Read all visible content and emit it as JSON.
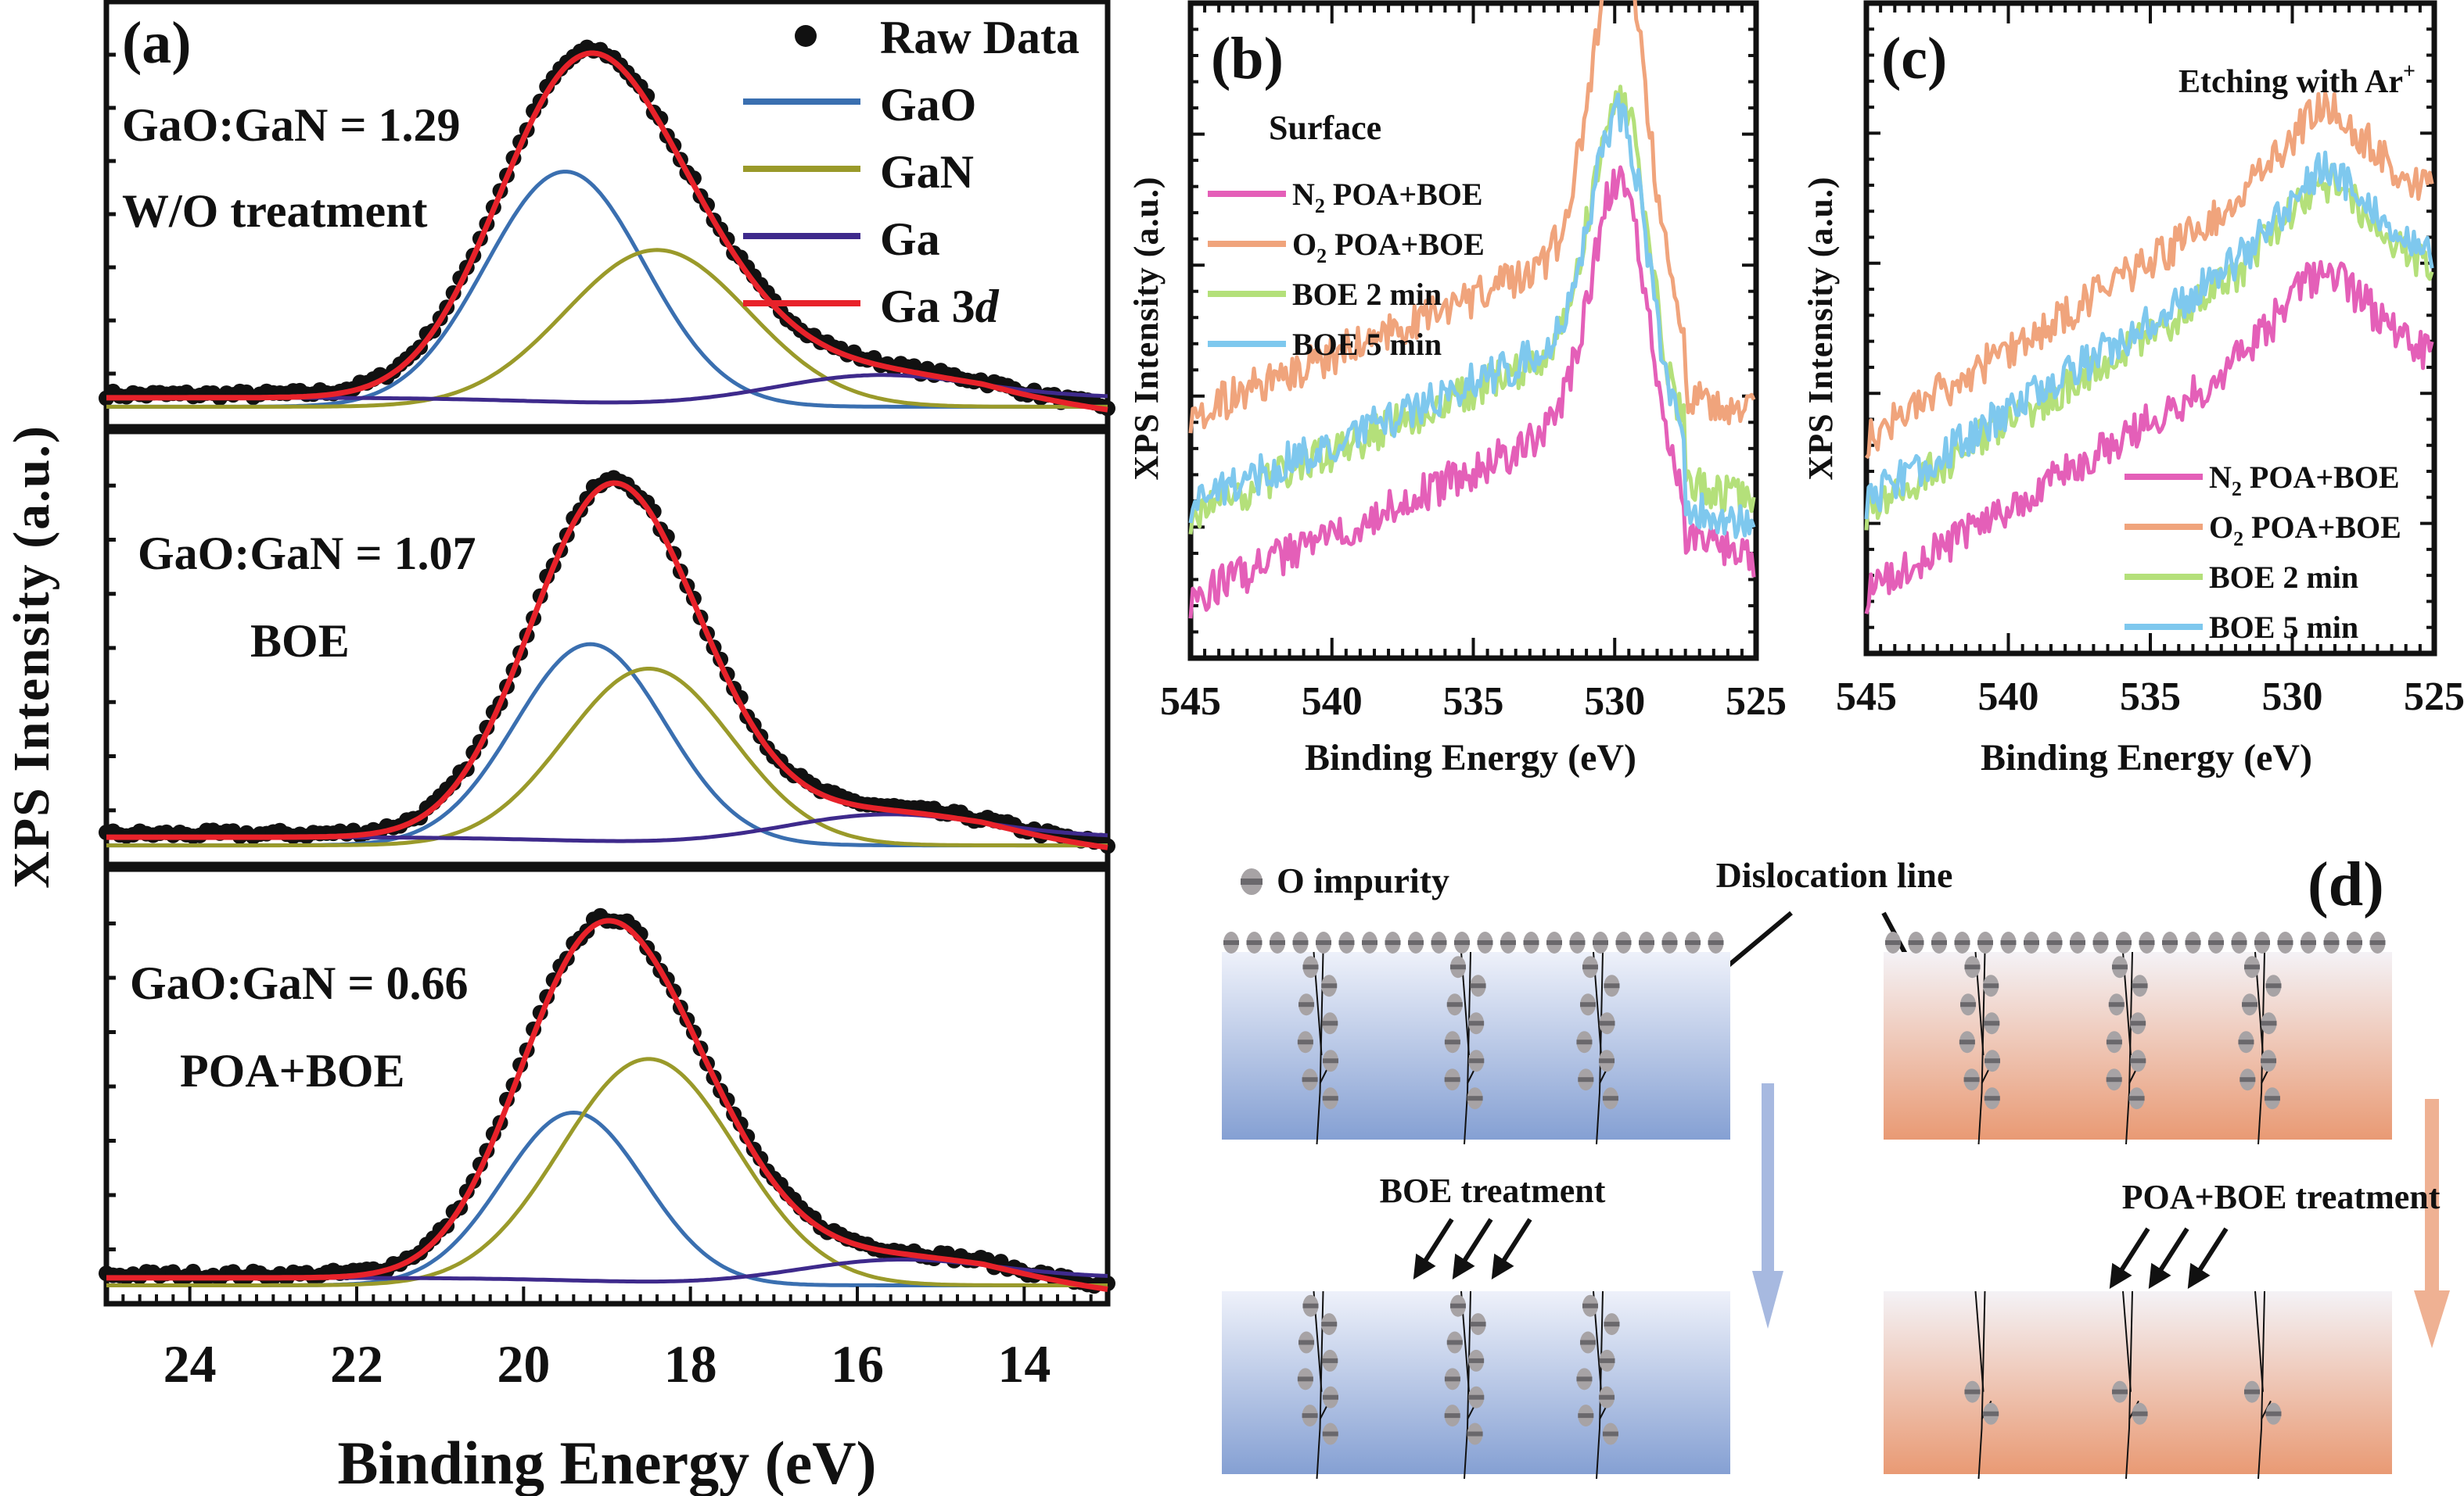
{
  "figure": {
    "panel_labels": {
      "a": "(a)",
      "b": "(b)",
      "c": "(c)",
      "d": "(d)"
    }
  },
  "chart_data": [
    {
      "id": "a",
      "type": "line",
      "title": "",
      "xlabel": "Binding Energy (eV)",
      "ylabel": "XPS Intensity (a.u.)",
      "xlim": [
        25,
        13
      ],
      "x_reversed": true,
      "xticks": [
        24,
        22,
        20,
        18,
        16,
        14
      ],
      "grid": false,
      "legend": {
        "placement": "top-right",
        "entries": [
          {
            "label": "Raw Data",
            "marker": "dot",
            "color": "#111111"
          },
          {
            "label": "GaO",
            "color": "#3a6fb0"
          },
          {
            "label": "GaN",
            "color": "#9a9a2a"
          },
          {
            "label": "Ga",
            "color": "#3e2a8c"
          },
          {
            "label": "Ga 3d",
            "label_plain": "Ga 3",
            "label_italic": "d",
            "color": "#e8222a"
          }
        ]
      },
      "subplots": [
        {
          "ratio_label": "GaO:GaN = 1.29",
          "treatment_label": "W/O treatment",
          "baseline": 0.06,
          "components": {
            "GaO": {
              "center": 19.5,
              "height": 0.78,
              "sigma": 0.95
            },
            "GaN": {
              "center": 18.4,
              "height": 0.52,
              "sigma": 1.1
            },
            "Ga": {
              "center": 15.8,
              "height": 0.08,
              "sigma": 1.2,
              "dip_center": 18.3
            }
          },
          "peak_x": 19.2,
          "peak_y": 1.0
        },
        {
          "ratio_label": "GaO:GaN = 1.07",
          "treatment_label": "BOE",
          "baseline": 0.06,
          "components": {
            "GaO": {
              "center": 19.2,
              "height": 0.74,
              "sigma": 0.9
            },
            "GaN": {
              "center": 18.5,
              "height": 0.65,
              "sigma": 1.0
            },
            "Ga": {
              "center": 15.7,
              "height": 0.09,
              "sigma": 1.2,
              "dip_center": 18.0
            }
          },
          "peak_x": 19.0,
          "peak_y": 1.0
        },
        {
          "ratio_label": "GaO:GaN = 0.66",
          "treatment_label": "POA+BOE",
          "baseline": 0.05,
          "components": {
            "GaO": {
              "center": 19.4,
              "height": 0.58,
              "sigma": 0.85
            },
            "GaN": {
              "center": 18.5,
              "height": 0.76,
              "sigma": 1.05
            },
            "Ga": {
              "center": 15.6,
              "height": 0.07,
              "sigma": 1.2,
              "dip_center": 17.5
            }
          },
          "peak_x": 19.0,
          "peak_y": 1.0
        }
      ]
    },
    {
      "id": "b",
      "type": "line",
      "annotation": "Surface",
      "xlabel": "Binding Energy (eV)",
      "ylabel": "XPS Intensity (a.u.)",
      "xlim": [
        545,
        525
      ],
      "x_reversed": true,
      "xticks": [
        545,
        540,
        535,
        530,
        525
      ],
      "grid": false,
      "legend_placement": "upper-left",
      "series": [
        {
          "name": "N2 POA+BOE",
          "label_main": "N",
          "label_sub": "2",
          "label_rest": " POA+BOE",
          "color": "#e45fb8",
          "start": 0.05,
          "pre_peak": 0.36,
          "peak": 0.7,
          "tail": 0.12
        },
        {
          "name": "O2 POA+BOE",
          "label_main": "O",
          "label_sub": "2",
          "label_rest": " POA+BOE",
          "color": "#f0a47c",
          "start": 0.38,
          "pre_peak": 0.66,
          "peak": 1.0,
          "tail": 0.38
        },
        {
          "name": "BOE 2 min",
          "label_main": "BOE 2 min",
          "label_sub": "",
          "label_rest": "",
          "color": "#b4e07a",
          "start": 0.2,
          "pre_peak": 0.5,
          "peak": 0.8,
          "tail": 0.22
        },
        {
          "name": "BOE 5 min",
          "label_main": "BOE 5 min",
          "label_sub": "",
          "label_rest": "",
          "color": "#7ec8ee",
          "start": 0.22,
          "pre_peak": 0.51,
          "peak": 0.77,
          "tail": 0.18
        }
      ],
      "peak_center": 529.8
    },
    {
      "id": "c",
      "type": "line",
      "annotation": "Etching with Ar",
      "annotation_sup": "+",
      "xlabel": "Binding Energy (eV)",
      "ylabel": "XPS Intensity (a.u.)",
      "xlim": [
        545,
        525
      ],
      "x_reversed": true,
      "xticks": [
        545,
        540,
        535,
        530,
        525
      ],
      "grid": false,
      "legend_placement": "lower-right",
      "series": [
        {
          "name": "N2 POA+BOE",
          "label_main": "N",
          "label_sub": "2",
          "label_rest": " POA+BOE",
          "color": "#e45fb8",
          "start": 0.05,
          "hump": 0.55,
          "end": 0.45
        },
        {
          "name": "O2 POA+BOE",
          "label_main": "O",
          "label_sub": "2",
          "label_rest": " POA+BOE",
          "color": "#f0a47c",
          "start": 0.33,
          "hump": 0.84,
          "end": 0.75
        },
        {
          "name": "BOE 2 min",
          "label_main": "BOE 2 min",
          "label_sub": "",
          "label_rest": "",
          "color": "#b4e07a",
          "start": 0.2,
          "hump": 0.71,
          "end": 0.6
        },
        {
          "name": "BOE 5 min",
          "label_main": "BOE 5 min",
          "label_sub": "",
          "label_rest": "",
          "color": "#7ec8ee",
          "start": 0.22,
          "hump": 0.73,
          "end": 0.62
        }
      ],
      "hump_center": 529.0
    }
  ],
  "diagram": {
    "legend_impurity": "O impurity",
    "dislocation_label": "Dislocation line",
    "left_treatment": "BOE treatment",
    "right_treatment": "POA+BOE treatment",
    "colors": {
      "blue_top": "#eef1fa",
      "blue_bottom": "#85a0d3",
      "blue_arrow": "#a7b9e0",
      "orange_top": "#f4f2f6",
      "orange_bottom": "#e99a74",
      "orange_arrow": "#efb193",
      "impurity": "#a7a3a5",
      "impurity_band": "#6a686c"
    }
  }
}
